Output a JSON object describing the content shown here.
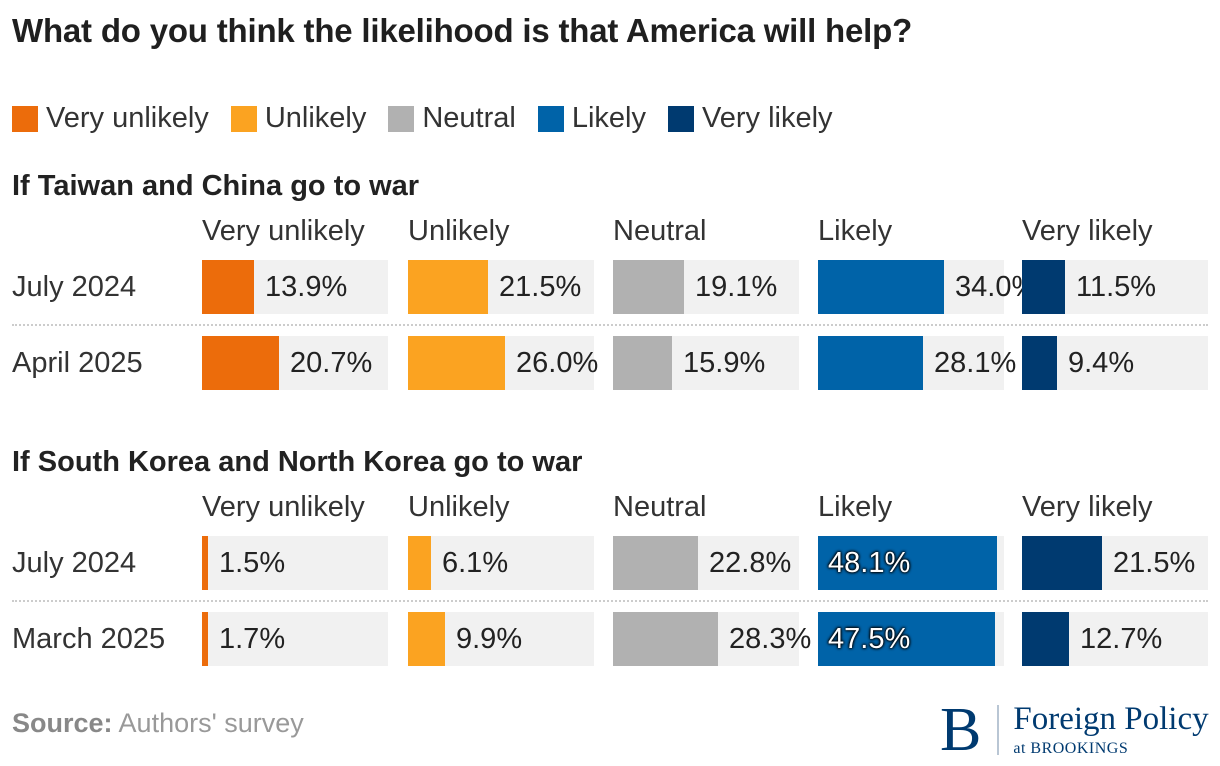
{
  "title": "What do you think the likelihood is that America will help?",
  "legend": [
    {
      "label": "Very unlikely",
      "color": "#ec6c0b"
    },
    {
      "label": "Unlikely",
      "color": "#fba321"
    },
    {
      "label": "Neutral",
      "color": "#b1b1b1"
    },
    {
      "label": "Likely",
      "color": "#0063a8"
    },
    {
      "label": "Very likely",
      "color": "#003a70"
    }
  ],
  "chart_data": [
    {
      "type": "bar",
      "title": "If Taiwan and China go to war",
      "categories": [
        "July 2024",
        "April 2025"
      ],
      "series": [
        {
          "name": "Very unlikely",
          "values": [
            13.9,
            20.7
          ]
        },
        {
          "name": "Unlikely",
          "values": [
            21.5,
            26.0
          ]
        },
        {
          "name": "Neutral",
          "values": [
            19.1,
            15.9
          ]
        },
        {
          "name": "Likely",
          "values": [
            34.0,
            28.1
          ]
        },
        {
          "name": "Very likely",
          "values": [
            11.5,
            9.4
          ]
        }
      ],
      "value_labels": [
        [
          "13.9%",
          "20.7%"
        ],
        [
          "21.5%",
          "26.0%"
        ],
        [
          "19.1%",
          "15.9%"
        ],
        [
          "34.0%",
          "28.1%"
        ],
        [
          "11.5%",
          "9.4%"
        ]
      ],
      "xlim": [
        0,
        100
      ]
    },
    {
      "type": "bar",
      "title": "If South Korea and North Korea go to war",
      "categories": [
        "July 2024",
        "March 2025"
      ],
      "series": [
        {
          "name": "Very unlikely",
          "values": [
            1.5,
            1.7
          ]
        },
        {
          "name": "Unlikely",
          "values": [
            6.1,
            9.9
          ]
        },
        {
          "name": "Neutral",
          "values": [
            22.8,
            28.3
          ]
        },
        {
          "name": "Likely",
          "values": [
            48.1,
            47.5
          ]
        },
        {
          "name": "Very likely",
          "values": [
            21.5,
            12.7
          ]
        }
      ],
      "value_labels": [
        [
          "1.5%",
          "1.7%"
        ],
        [
          "6.1%",
          "9.9%"
        ],
        [
          "22.8%",
          "28.3%"
        ],
        [
          "48.1%",
          "47.5%"
        ],
        [
          "21.5%",
          "12.7%"
        ]
      ],
      "xlim": [
        0,
        100
      ]
    }
  ],
  "source": {
    "label": "Source:",
    "text": "Authors' survey"
  },
  "brand": {
    "mark": "B",
    "name": "Foreign Policy",
    "sub": "at BROOKINGS"
  }
}
